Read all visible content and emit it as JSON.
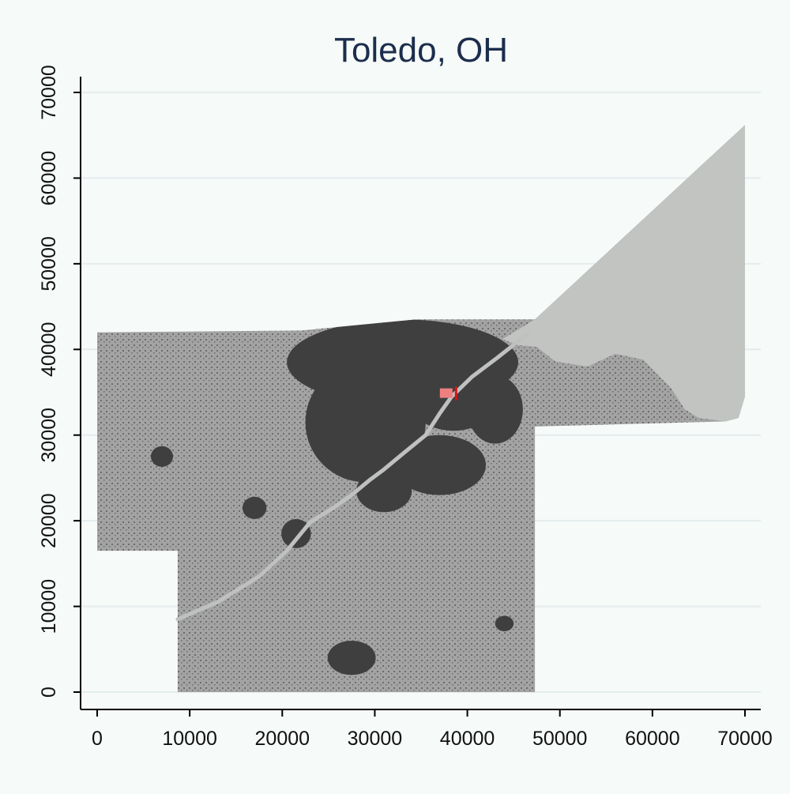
{
  "title": "Toledo, OH",
  "colors": {
    "background": "#f6faf8",
    "title": "#1c2d4d",
    "grid": "#e5ecee",
    "axis": "#000000",
    "land": "#a3a3a3",
    "developed": "#3f3f3f",
    "water": "#c2c4c2",
    "river": "#bfc1c1",
    "marker_fill": "#f08080",
    "marker_edge": "#e01010"
  },
  "chart_data": {
    "type": "map",
    "title": "Toledo, OH",
    "xlim": [
      0,
      70000
    ],
    "ylim": [
      0,
      70000
    ],
    "x_ticks": [
      0,
      10000,
      20000,
      30000,
      40000,
      50000,
      60000,
      70000
    ],
    "y_ticks": [
      0,
      10000,
      20000,
      30000,
      40000,
      50000,
      60000,
      70000
    ],
    "x_tick_labels": [
      "0",
      "10000",
      "20000",
      "30000",
      "40000",
      "50000",
      "60000",
      "70000"
    ],
    "y_tick_labels": [
      "0",
      "10000",
      "20000",
      "30000",
      "40000",
      "50000",
      "60000",
      "70000"
    ],
    "grid": true,
    "layers": [
      {
        "name": "land",
        "polygon": [
          [
            0,
            16500
          ],
          [
            8700,
            16500
          ],
          [
            8700,
            0
          ],
          [
            47300,
            0
          ],
          [
            47300,
            31000
          ],
          [
            67900,
            31600
          ],
          [
            69300,
            32000
          ],
          [
            70000,
            34500
          ],
          [
            70000,
            66200
          ],
          [
            47300,
            43500
          ],
          [
            34500,
            43500
          ],
          [
            22000,
            42200
          ],
          [
            0,
            42000
          ]
        ]
      },
      {
        "name": "lake",
        "polygon": [
          [
            43800,
            41200
          ],
          [
            47300,
            43500
          ],
          [
            70000,
            66200
          ],
          [
            70000,
            34500
          ],
          [
            69300,
            32000
          ],
          [
            67900,
            31600
          ],
          [
            65000,
            32000
          ],
          [
            63500,
            33000
          ],
          [
            62000,
            35500
          ],
          [
            59000,
            38800
          ],
          [
            56000,
            39500
          ],
          [
            53000,
            38000
          ],
          [
            49500,
            38600
          ],
          [
            47500,
            40300
          ],
          [
            45500,
            40500
          ]
        ]
      }
    ],
    "developed_areas": [
      {
        "center": [
          33000,
          38500
        ],
        "radii": [
          12500,
          5000
        ]
      },
      {
        "center": [
          29000,
          31500
        ],
        "radii": [
          6500,
          7000
        ]
      },
      {
        "center": [
          38500,
          35500
        ],
        "radii": [
          5500,
          5000
        ]
      },
      {
        "center": [
          43000,
          33000
        ],
        "radii": [
          3000,
          4000
        ]
      },
      {
        "center": [
          37000,
          26500
        ],
        "radii": [
          5000,
          3500
        ]
      },
      {
        "center": [
          31000,
          23500
        ],
        "radii": [
          3000,
          2500
        ]
      },
      {
        "center": [
          21500,
          18500
        ],
        "radii": [
          1600,
          1700
        ]
      },
      {
        "center": [
          27500,
          4000
        ],
        "radii": [
          2600,
          2000
        ]
      },
      {
        "center": [
          7000,
          27500
        ],
        "radii": [
          1200,
          1200
        ]
      },
      {
        "center": [
          17000,
          21500
        ],
        "radii": [
          1300,
          1300
        ]
      },
      {
        "center": [
          44000,
          8000
        ],
        "radii": [
          1000,
          900
        ]
      }
    ],
    "river": [
      [
        8700,
        8500
      ],
      [
        13000,
        10500
      ],
      [
        17500,
        13500
      ],
      [
        20500,
        16500
      ],
      [
        23000,
        19800
      ],
      [
        25500,
        21500
      ],
      [
        27500,
        23000
      ],
      [
        29500,
        24800
      ],
      [
        31000,
        26000
      ],
      [
        33000,
        27800
      ],
      [
        35500,
        30000
      ],
      [
        37000,
        32500
      ],
      [
        38300,
        34500
      ],
      [
        40500,
        36800
      ],
      [
        43200,
        39000
      ],
      [
        46500,
        41800
      ]
    ],
    "point_of_interest": {
      "x": 37800,
      "y": 34900
    }
  }
}
